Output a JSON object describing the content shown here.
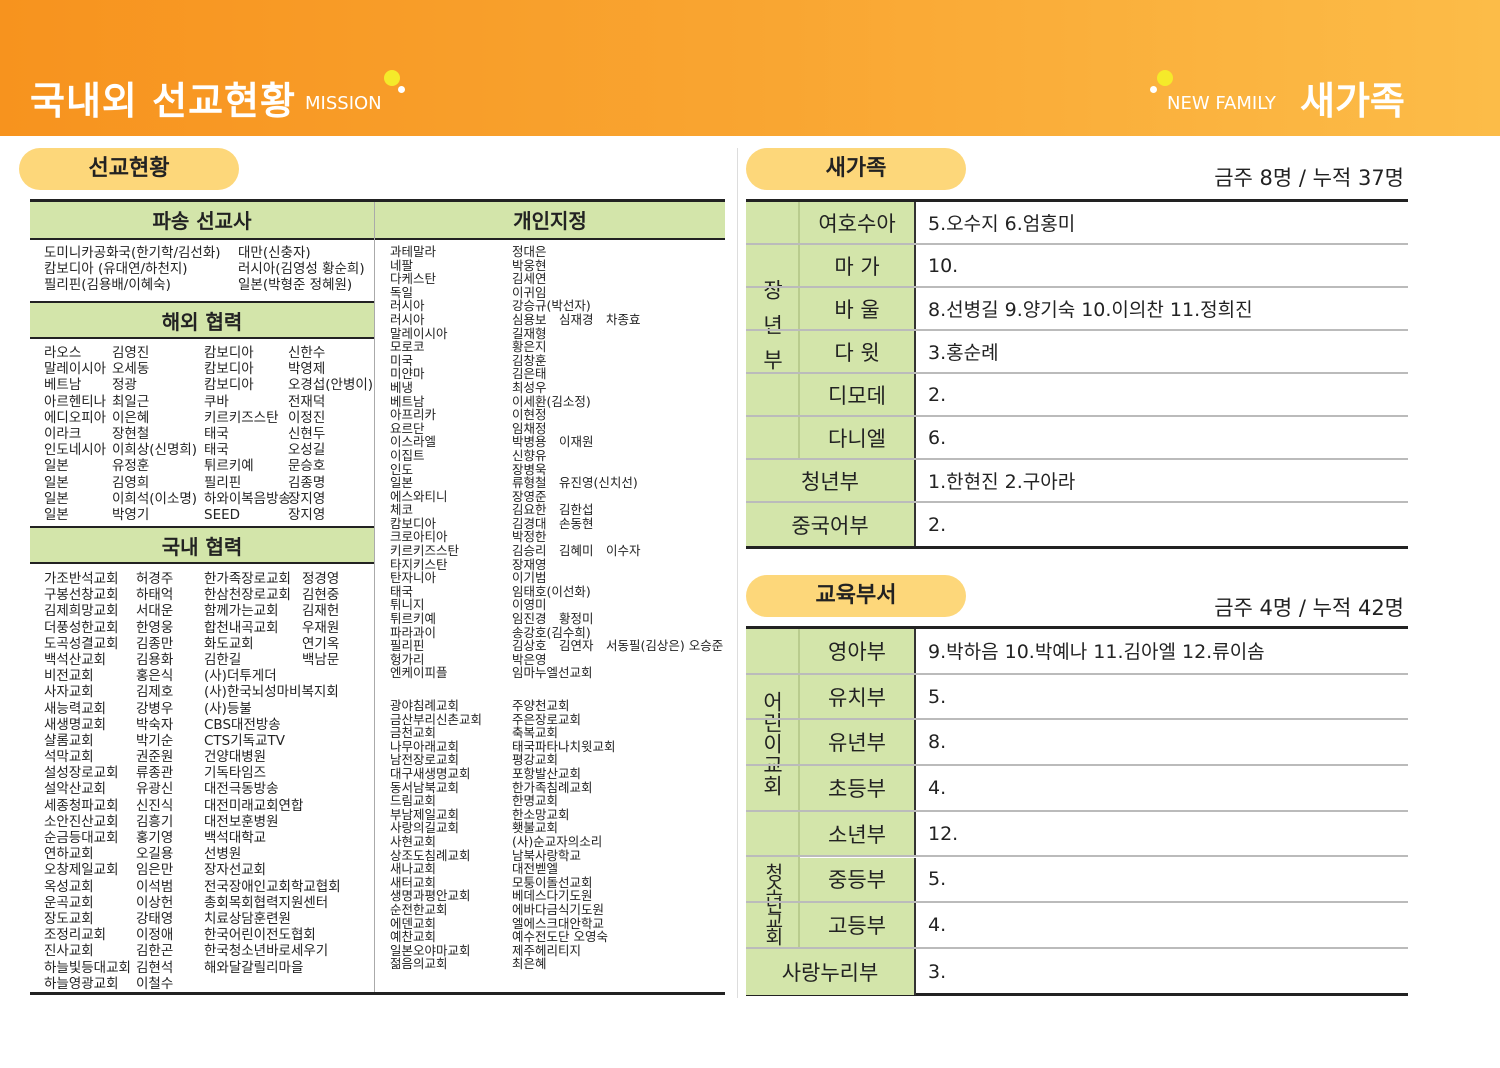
{
  "header": {
    "title": "국내외 선교현황",
    "subtitle": "MISSION",
    "right_subtitle": "NEW FAMILY",
    "right_title": "새가족",
    "accent": "#f7931e"
  },
  "mission": {
    "pill": "선교현황",
    "dispatch": {
      "title": "파송 선교사",
      "rows": [
        [
          "도미니카공화국(한기학/김선화)",
          "대만(신충자)"
        ],
        [
          "캄보디아 (유대연/하천지)",
          "러시아(김영성 황순희)"
        ],
        [
          "필리핀(김용배/이혜숙)",
          "일본(박형준 정혜원)"
        ]
      ]
    },
    "overseas": {
      "title": "해외 협력",
      "rows": [
        [
          "라오스",
          "김영진",
          "캄보디아",
          "신한수"
        ],
        [
          "말레이시아",
          "오세동",
          "캄보디아",
          "박영제"
        ],
        [
          "베트남",
          "정광",
          "캄보디아",
          "오경섭(안병이)"
        ],
        [
          "아르헨티나",
          "최일근",
          "쿠바",
          "전재덕"
        ],
        [
          "에디오피아",
          "이은혜",
          "키르키즈스탄",
          "이정진"
        ],
        [
          "이라크",
          "장현철",
          "태국",
          "신현두"
        ],
        [
          "인도네시아",
          "이희상(신명희)",
          "태국",
          "오성길"
        ],
        [
          "일본",
          "유정훈",
          "튀르키예",
          "문승호"
        ],
        [
          "일본",
          "김영희",
          "필리핀",
          "김종명"
        ],
        [
          "일본",
          "이희석(이소명)",
          "하와이복음방송",
          "장지영"
        ],
        [
          "일본",
          "박영기",
          "SEED",
          "장지영"
        ]
      ]
    },
    "domestic": {
      "title": "국내 협력",
      "rows": [
        [
          "가조반석교회",
          "허경주",
          "한가족장로교회",
          "정경영"
        ],
        [
          "구봉선창교회",
          "하태억",
          "한삼천장로교회",
          "김현중"
        ],
        [
          "김제희망교회",
          "서대운",
          "함께가는교회",
          "김재헌"
        ],
        [
          "더풍성한교회",
          "한영웅",
          "합천내곡교회",
          "우재원"
        ],
        [
          "도곡성결교회",
          "김종만",
          "화도교회",
          "연기옥"
        ],
        [
          "백석산교회",
          "김용화",
          "김한길",
          "백남문"
        ],
        [
          "비전교회",
          "홍은식",
          "(사)더투게더",
          ""
        ],
        [
          "사자교회",
          "김제호",
          "(사)한국뇌성마비복지회",
          ""
        ],
        [
          "새능력교회",
          "강병우",
          "(사)등불",
          ""
        ],
        [
          "새생명교회",
          "박숙자",
          "CBS대전방송",
          ""
        ],
        [
          "샬롬교회",
          "박기순",
          "CTS기독교TV",
          ""
        ],
        [
          "석막교회",
          "권준원",
          "건양대병원",
          ""
        ],
        [
          "설성장로교회",
          "류종관",
          "기독타임즈",
          ""
        ],
        [
          "설악산교회",
          "유광신",
          "대전극동방송",
          ""
        ],
        [
          "세종청파교회",
          "신진식",
          "대전미래교회연합",
          ""
        ],
        [
          "소안진산교회",
          "김흥기",
          "대전보훈병원",
          ""
        ],
        [
          "순금등대교회",
          "홍기영",
          "백석대학교",
          ""
        ],
        [
          "연하교회",
          "오길용",
          "선병원",
          ""
        ],
        [
          "오창제일교회",
          "임은만",
          "장자선교회",
          ""
        ],
        [
          "옥성교회",
          "이석범",
          "전국장애인교회학교협회",
          ""
        ],
        [
          "운곡교회",
          "이상헌",
          "총회목회협력지원센터",
          ""
        ],
        [
          "장도교회",
          "강태영",
          "치료상담훈련원",
          ""
        ],
        [
          "조정리교회",
          "이정애",
          "한국어린이전도협회",
          ""
        ],
        [
          "진사교회",
          "김한곤",
          "한국청소년바로세우기",
          ""
        ],
        [
          "하늘빛등대교회",
          "김현석",
          "해와달갈릴리마을",
          ""
        ],
        [
          "하늘영광교회",
          "이철수",
          "",
          ""
        ]
      ]
    },
    "personal": {
      "title": "개인지정",
      "countries": [
        [
          "과테말라",
          "정대은"
        ],
        [
          "네팔",
          "박웅현"
        ],
        [
          "다케스탄",
          "김세연"
        ],
        [
          "독일",
          "이귀임"
        ],
        [
          "러시아",
          "강승규(박선자)"
        ],
        [
          "러시아",
          "심용보　심재경　차종효"
        ],
        [
          "말레이시아",
          "길재형"
        ],
        [
          "모로코",
          "황은지"
        ],
        [
          "미국",
          "김창훈"
        ],
        [
          "미얀마",
          "김은태"
        ],
        [
          "베냉",
          "최성우"
        ],
        [
          "베트남",
          "이세환(김소정)"
        ],
        [
          "아프리카",
          "이현정"
        ],
        [
          "요르단",
          "임채정"
        ],
        [
          "이스라엘",
          "박병용　이재원"
        ],
        [
          "이집트",
          "신향유"
        ],
        [
          "인도",
          "장병욱"
        ],
        [
          "일본",
          "류형철　유진영(신치선)"
        ],
        [
          "에스와티니",
          "장영준"
        ],
        [
          "체코",
          "김요한　김한섭"
        ],
        [
          "캄보디아",
          "김경대　손동현"
        ],
        [
          "크로아티아",
          "박정한"
        ],
        [
          "키르키즈스탄",
          "김승리　김혜미　이수자"
        ],
        [
          "타지키스탄",
          "장재영"
        ],
        [
          "탄자니아",
          "이기범"
        ],
        [
          "태국",
          "임태호(이선화)"
        ],
        [
          "튀니지",
          "이영미"
        ],
        [
          "튀르키예",
          "임진경　황정미"
        ],
        [
          "파라과이",
          "송강호(김수희)"
        ],
        [
          "필리핀",
          "김상호　김연자　서동필(김상은) 오승준"
        ],
        [
          "헝가리",
          "박은영"
        ],
        [
          "엔케이피플",
          "임마누엘선교회"
        ]
      ],
      "churches": [
        [
          "광야침례교회",
          "주양천교회"
        ],
        [
          "금산부리신촌교회",
          "주은장로교회"
        ],
        [
          "금천교회",
          "축복교회"
        ],
        [
          "나무아래교회",
          "태국파타나치윗교회"
        ],
        [
          "남전장로교회",
          "평강교회"
        ],
        [
          "대구새생명교회",
          "포항발산교회"
        ],
        [
          "동서남북교회",
          "한가족침례교회"
        ],
        [
          "드림교회",
          "한명교회"
        ],
        [
          "부남제일교회",
          "한소망교회"
        ],
        [
          "사랑의길교회",
          "횃불교회"
        ],
        [
          "사현교회",
          "(사)순교자의소리"
        ],
        [
          "상조도침례교회",
          "남북사랑학교"
        ],
        [
          "새나교회",
          "대전벧엘"
        ],
        [
          "새터교회",
          "모퉁이돌선교회"
        ],
        [
          "생명과평안교회",
          "베데스다기도원"
        ],
        [
          "순전한교회",
          "에바다금식기도원"
        ],
        [
          "에덴교회",
          "엘에스크대안학교"
        ],
        [
          "예찬교회",
          "예수전도단 오영숙"
        ],
        [
          "일본오야마교회",
          "제주헤리티지"
        ],
        [
          "젊음의교회",
          "최은혜"
        ]
      ]
    }
  },
  "newfamily": {
    "pill": "새가족",
    "count": "금주 8명  / 누적 37명",
    "group": "장년부",
    "rows": [
      {
        "label": "여호수아",
        "value": "5.오수지 6.엄홍미"
      },
      {
        "label": "마 가",
        "value": "10."
      },
      {
        "label": "바 울",
        "value": "8.선병길 9.양기숙 10.이의찬 11.정희진"
      },
      {
        "label": "다 윗",
        "value": "3.홍순례"
      },
      {
        "label": "디모데",
        "value": "2."
      },
      {
        "label": "다니엘",
        "value": "6."
      },
      {
        "label": "청년부",
        "value": "1.한현진 2.구아라"
      },
      {
        "label": "중국어부",
        "value": "2."
      }
    ]
  },
  "education": {
    "pill": "교육부서",
    "count": "금주 4명  / 누적 42명",
    "groups": [
      "어린이교회",
      "청소년교회"
    ],
    "rows": [
      {
        "label": "영아부",
        "value": "9.박하음 10.박예나 11.김아엘 12.류이솜"
      },
      {
        "label": "유치부",
        "value": "5."
      },
      {
        "label": "유년부",
        "value": "8."
      },
      {
        "label": "초등부",
        "value": "4."
      },
      {
        "label": "소년부",
        "value": "12."
      },
      {
        "label": "중등부",
        "value": "5."
      },
      {
        "label": "고등부",
        "value": "4."
      },
      {
        "label": "사랑누리부",
        "value": "3."
      }
    ]
  }
}
